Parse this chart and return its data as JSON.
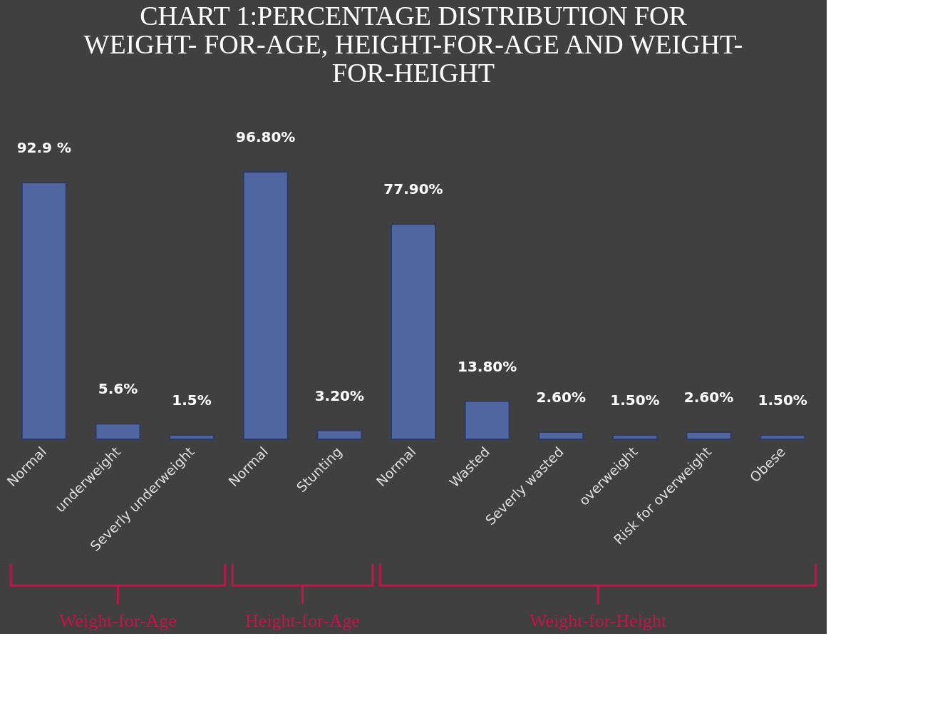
{
  "chart_data": {
    "type": "bar",
    "title": [
      "CHART 1:PERCENTAGE DISTRIBUTION FOR",
      "WEIGHT- FOR-AGE, HEIGHT-FOR-AGE AND WEIGHT-",
      "FOR-HEIGHT"
    ],
    "categories": [
      "Normal",
      "underweight",
      "Severly underweight",
      "Normal",
      "Stunting",
      "Normal",
      "Wasted",
      "Severly wasted",
      "overweight",
      "Risk for overweight",
      "Obese"
    ],
    "values": [
      92.9,
      5.6,
      1.5,
      96.8,
      3.2,
      77.9,
      13.8,
      2.6,
      1.5,
      2.6,
      1.5
    ],
    "value_labels": [
      "92.9 %",
      "5.6%",
      "1.5%",
      "96.80%",
      "3.20%",
      "77.90%",
      "13.80%",
      "2.60%",
      "1.50%",
      "2.60%",
      "1.50%"
    ],
    "color": "#5066a0",
    "annotations": [
      "Weight-for-Age",
      "Height-for-Age",
      "Weight-for-Height"
    ],
    "grid": false
  }
}
